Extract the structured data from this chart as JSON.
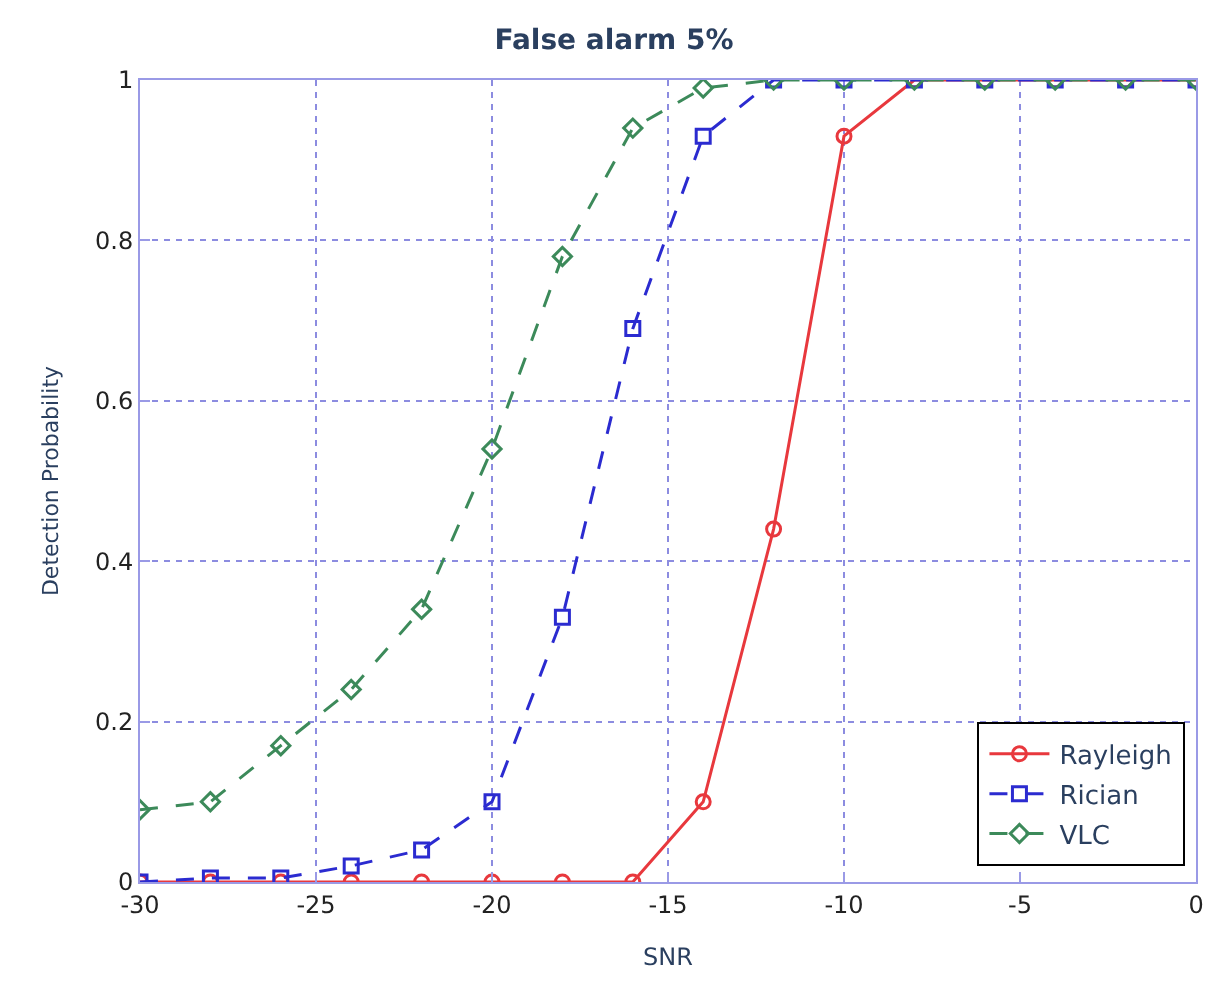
{
  "chart_data": {
    "type": "line",
    "title": "False alarm 5%",
    "xlabel": "SNR",
    "ylabel": "Detection Probability",
    "x": [
      -30,
      -28,
      -26,
      -24,
      -22,
      -20,
      -18,
      -16,
      -14,
      -12,
      -10,
      -8,
      -6,
      -4,
      -2,
      0
    ],
    "series": [
      {
        "name": "Rayleigh",
        "color": "#e8383d",
        "marker": "circle",
        "line_style": "solid",
        "values": [
          0,
          0,
          0,
          0,
          0,
          0,
          0,
          0,
          0.1,
          0.44,
          0.93,
          1,
          1,
          1,
          1,
          1
        ]
      },
      {
        "name": "Rician",
        "color": "#2b2bd0",
        "marker": "square",
        "line_style": "dashed",
        "values": [
          0,
          0.005,
          0.005,
          0.02,
          0.04,
          0.1,
          0.33,
          0.69,
          0.93,
          1,
          1,
          1,
          1,
          1,
          1,
          1
        ]
      },
      {
        "name": "VLC",
        "color": "#3c8a5a",
        "marker": "diamond",
        "line_style": "dashed",
        "values": [
          0.09,
          0.1,
          0.17,
          0.24,
          0.34,
          0.54,
          0.78,
          0.94,
          0.99,
          1,
          1,
          1,
          1,
          1,
          1,
          1
        ]
      }
    ],
    "xlim": [
      -30,
      0
    ],
    "xticks": [
      -30,
      -25,
      -20,
      -15,
      -10,
      -5,
      0
    ],
    "ylim": [
      0,
      1
    ],
    "yticks": [
      0,
      0.2,
      0.4,
      0.6,
      0.8,
      1
    ],
    "grid": true,
    "legend": "bottom right"
  }
}
